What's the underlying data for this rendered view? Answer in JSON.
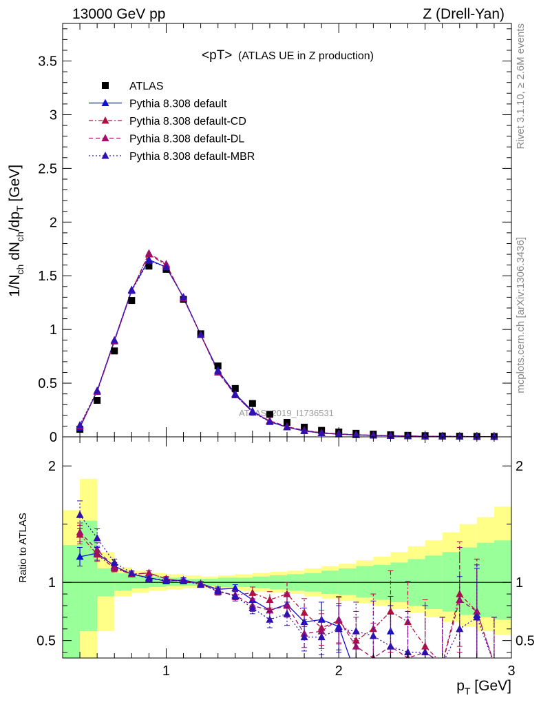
{
  "header": {
    "left": "13000 GeV pp",
    "right": "Z (Drell-Yan)"
  },
  "side_labels": {
    "rivet": "Rivet 3.1.10, ≥ 2.6M events",
    "mcplots": "mcplots.cern.ch [arXiv:1306.3436]"
  },
  "watermark": "ATLAS_2019_I1736531",
  "colors": {
    "atlas": "#000000",
    "default": "#1010d0",
    "cd": "#b01040",
    "dl": "#a0106a",
    "mbr": "#3010b0",
    "band_inner": "#99ff99",
    "band_outer": "#ffff88"
  },
  "chart_data": [
    {
      "type": "scatter",
      "title": "<pT> (ATLAS UE in Z production)",
      "title_main": "<pT>",
      "title_sub": "(ATLAS UE in Z production)",
      "ylabel": "1/N_ch dN_ch/dp_T [GeV]",
      "ylabel_parts": {
        "a": "1/N",
        "b": "ch",
        "c": " dN",
        "d": "ch",
        "e": "/dp",
        "f": "T",
        "g": " [GeV]"
      },
      "xlim": [
        0.4,
        3.0
      ],
      "ylim": [
        0,
        3.85
      ],
      "yticks": [
        0,
        0.5,
        1,
        1.5,
        2,
        2.5,
        3,
        3.5
      ],
      "ytick_labels": [
        "0",
        "0.5",
        "1",
        "1.5",
        "2",
        "2.5",
        "3",
        "3.5"
      ],
      "legend_position": "top-left",
      "x": [
        0.5,
        0.6,
        0.7,
        0.8,
        0.9,
        1.0,
        1.1,
        1.2,
        1.3,
        1.4,
        1.5,
        1.6,
        1.7,
        1.8,
        1.9,
        2.0,
        2.1,
        2.2,
        2.3,
        2.4,
        2.5,
        2.6,
        2.7,
        2.8,
        2.9
      ],
      "series": [
        {
          "name": "ATLAS",
          "key": "atlas",
          "style": "square",
          "values": [
            0.07,
            0.34,
            0.8,
            1.27,
            1.59,
            1.56,
            1.28,
            0.96,
            0.66,
            0.45,
            0.31,
            0.21,
            0.135,
            0.09,
            0.06,
            0.045,
            0.033,
            0.025,
            0.019,
            0.014,
            0.011,
            0.008,
            0.006,
            0.0045,
            0.0035
          ]
        },
        {
          "name": "Pythia 8.308 default",
          "key": "default",
          "style": "solid",
          "values": [
            0.085,
            0.43,
            0.9,
            1.37,
            1.65,
            1.58,
            1.3,
            0.95,
            0.62,
            0.4,
            0.24,
            0.14,
            0.09,
            0.055,
            0.035,
            0.025,
            0.018,
            0.013,
            0.01,
            0.007,
            0.005,
            0.004,
            0.003,
            0.002,
            0.0015
          ]
        },
        {
          "name": "Pythia 8.308 default-CD",
          "key": "cd",
          "style": "dashdot",
          "values": [
            0.1,
            0.42,
            0.89,
            1.36,
            1.7,
            1.6,
            1.29,
            0.95,
            0.61,
            0.39,
            0.23,
            0.15,
            0.095,
            0.06,
            0.038,
            0.028,
            0.02,
            0.015,
            0.011,
            0.008,
            0.006,
            0.004,
            0.003,
            0.002,
            0.0015
          ]
        },
        {
          "name": "Pythia 8.308 default-DL",
          "key": "dl",
          "style": "dashed",
          "values": [
            0.1,
            0.42,
            0.89,
            1.36,
            1.71,
            1.61,
            1.29,
            0.95,
            0.6,
            0.39,
            0.23,
            0.15,
            0.095,
            0.06,
            0.038,
            0.028,
            0.02,
            0.015,
            0.011,
            0.008,
            0.006,
            0.004,
            0.003,
            0.002,
            0.0015
          ]
        },
        {
          "name": "Pythia 8.308 default-MBR",
          "key": "mbr",
          "style": "dotted",
          "values": [
            0.11,
            0.43,
            0.9,
            1.36,
            1.64,
            1.58,
            1.3,
            0.95,
            0.61,
            0.39,
            0.23,
            0.14,
            0.09,
            0.055,
            0.035,
            0.025,
            0.018,
            0.013,
            0.01,
            0.007,
            0.005,
            0.004,
            0.003,
            0.002,
            0.0015
          ]
        }
      ]
    },
    {
      "type": "line",
      "ylabel": "Ratio to ATLAS",
      "xlabel": "p_T [GeV]",
      "xlabel_parts": {
        "a": "p",
        "b": "T",
        "c": " [GeV]"
      },
      "xlim": [
        0.4,
        3.0
      ],
      "ylim": [
        0.35,
        2.25
      ],
      "xticks": [
        1,
        2,
        3
      ],
      "xtick_labels": [
        "1",
        "2",
        "3"
      ],
      "yticks": [
        0.5,
        1,
        2
      ],
      "ytick_labels": [
        "0.5",
        "1",
        "2"
      ],
      "reference_line": 1,
      "band_bins": [
        0.4,
        0.5,
        0.6,
        0.7,
        0.8,
        0.9,
        1.0,
        1.1,
        1.2,
        1.3,
        1.4,
        1.5,
        1.6,
        1.7,
        1.8,
        1.9,
        2.0,
        2.1,
        2.2,
        2.3,
        2.4,
        2.5,
        2.6,
        2.7,
        2.8,
        2.9,
        3.0
      ],
      "band_inner": [
        [
          0.3,
          1.32
        ],
        [
          0.58,
          1.53
        ],
        [
          0.88,
          1.12
        ],
        [
          0.93,
          1.08
        ],
        [
          0.95,
          1.06
        ],
        [
          0.96,
          1.05
        ],
        [
          0.97,
          1.04
        ],
        [
          0.97,
          1.03
        ],
        [
          0.97,
          1.03
        ],
        [
          0.96,
          1.04
        ],
        [
          0.96,
          1.04
        ],
        [
          0.95,
          1.05
        ],
        [
          0.94,
          1.06
        ],
        [
          0.93,
          1.07
        ],
        [
          0.92,
          1.08
        ],
        [
          0.9,
          1.1
        ],
        [
          0.89,
          1.12
        ],
        [
          0.87,
          1.14
        ],
        [
          0.85,
          1.15
        ],
        [
          0.83,
          1.17
        ],
        [
          0.8,
          1.2
        ],
        [
          0.77,
          1.23
        ],
        [
          0.75,
          1.26
        ],
        [
          0.72,
          1.3
        ],
        [
          0.7,
          1.34
        ],
        [
          0.68,
          1.36
        ]
      ],
      "band_outer": [
        [
          0.3,
          1.62
        ],
        [
          0.3,
          1.89
        ],
        [
          0.58,
          1.26
        ],
        [
          0.88,
          1.13
        ],
        [
          0.91,
          1.1
        ],
        [
          0.93,
          1.08
        ],
        [
          0.94,
          1.07
        ],
        [
          0.95,
          1.06
        ],
        [
          0.95,
          1.05
        ],
        [
          0.94,
          1.06
        ],
        [
          0.93,
          1.07
        ],
        [
          0.92,
          1.08
        ],
        [
          0.91,
          1.09
        ],
        [
          0.9,
          1.1
        ],
        [
          0.88,
          1.12
        ],
        [
          0.86,
          1.14
        ],
        [
          0.84,
          1.16
        ],
        [
          0.82,
          1.19
        ],
        [
          0.8,
          1.22
        ],
        [
          0.77,
          1.26
        ],
        [
          0.74,
          1.31
        ],
        [
          0.7,
          1.36
        ],
        [
          0.66,
          1.43
        ],
        [
          0.62,
          1.5
        ],
        [
          0.58,
          1.56
        ],
        [
          0.55,
          1.65
        ]
      ],
      "x": [
        0.5,
        0.6,
        0.7,
        0.8,
        0.9,
        1.0,
        1.1,
        1.2,
        1.3,
        1.4,
        1.5,
        1.6,
        1.7,
        1.8,
        1.9,
        2.0,
        2.1,
        2.2,
        2.3,
        2.4,
        2.5,
        2.6,
        2.7,
        2.8,
        2.9
      ],
      "series": [
        {
          "name": "Pythia 8.308 default",
          "key": "default",
          "style": "solid",
          "values": [
            1.22,
            1.25,
            1.14,
            1.07,
            1.04,
            1.01,
            1.02,
            0.99,
            0.94,
            0.95,
            0.85,
            0.76,
            0.81,
            0.66,
            0.68,
            0.62,
            0.2,
            null,
            0.58,
            null,
            null,
            null,
            null,
            0.72,
            null
          ],
          "errors": [
            0.08,
            0.06,
            0.03,
            0.02,
            0.02,
            0.02,
            0.02,
            0.02,
            0.02,
            0.03,
            0.05,
            0.07,
            0.1,
            0.12,
            0.15,
            0.2,
            0.3,
            null,
            0.3,
            null,
            null,
            null,
            null,
            0.4,
            null
          ]
        },
        {
          "name": "Pythia 8.308 default-CD",
          "key": "cd",
          "style": "dashdot",
          "values": [
            1.41,
            1.24,
            1.12,
            1.07,
            1.08,
            1.03,
            1.01,
            0.99,
            0.92,
            0.89,
            0.91,
            0.85,
            0.9,
            0.74,
            0.61,
            0.67,
            0.5,
            0.6,
            0.75,
            0.66,
            0.45,
            0.3,
            0.9,
            0.75,
            0.3
          ],
          "errors": [
            0.08,
            0.06,
            0.03,
            0.02,
            0.02,
            0.02,
            0.02,
            0.02,
            0.03,
            0.04,
            0.05,
            0.07,
            0.1,
            0.12,
            0.15,
            0.2,
            0.25,
            0.3,
            0.35,
            0.35,
            0.4,
            0.4,
            0.45,
            0.45,
            0.4
          ]
        },
        {
          "name": "Pythia 8.308 default-DL",
          "key": "dl",
          "style": "dashed",
          "values": [
            1.43,
            1.28,
            1.13,
            1.07,
            1.08,
            1.03,
            1.01,
            0.99,
            0.92,
            0.89,
            0.8,
            0.76,
            0.8,
            0.56,
            0.58,
            0.68,
            0.45,
            0.35,
            0.45,
            0.35,
            0.4,
            0.3,
            0.85,
            0.75,
            0.3
          ],
          "errors": [
            0.08,
            0.06,
            0.03,
            0.02,
            0.02,
            0.02,
            0.02,
            0.02,
            0.03,
            0.04,
            0.05,
            0.07,
            0.1,
            0.12,
            0.15,
            0.2,
            0.25,
            0.3,
            0.35,
            0.35,
            0.4,
            0.4,
            0.45,
            0.45,
            0.4
          ]
        },
        {
          "name": "Pythia 8.308 default-MBR",
          "key": "mbr",
          "style": "dotted",
          "values": [
            1.58,
            1.38,
            1.17,
            1.08,
            1.03,
            1.02,
            1.01,
            0.98,
            0.93,
            0.88,
            0.78,
            0.68,
            0.73,
            0.53,
            0.53,
            0.6,
            0.58,
            0.54,
            0.45,
            0.4,
            0.4,
            0.3,
            0.6,
            0.7,
            0.3
          ],
          "errors": [
            0.12,
            0.08,
            0.03,
            0.02,
            0.02,
            0.02,
            0.02,
            0.02,
            0.03,
            0.04,
            0.05,
            0.07,
            0.1,
            0.12,
            0.15,
            0.2,
            0.25,
            0.3,
            0.35,
            0.35,
            0.4,
            0.4,
            0.45,
            0.45,
            0.4
          ]
        }
      ]
    }
  ]
}
